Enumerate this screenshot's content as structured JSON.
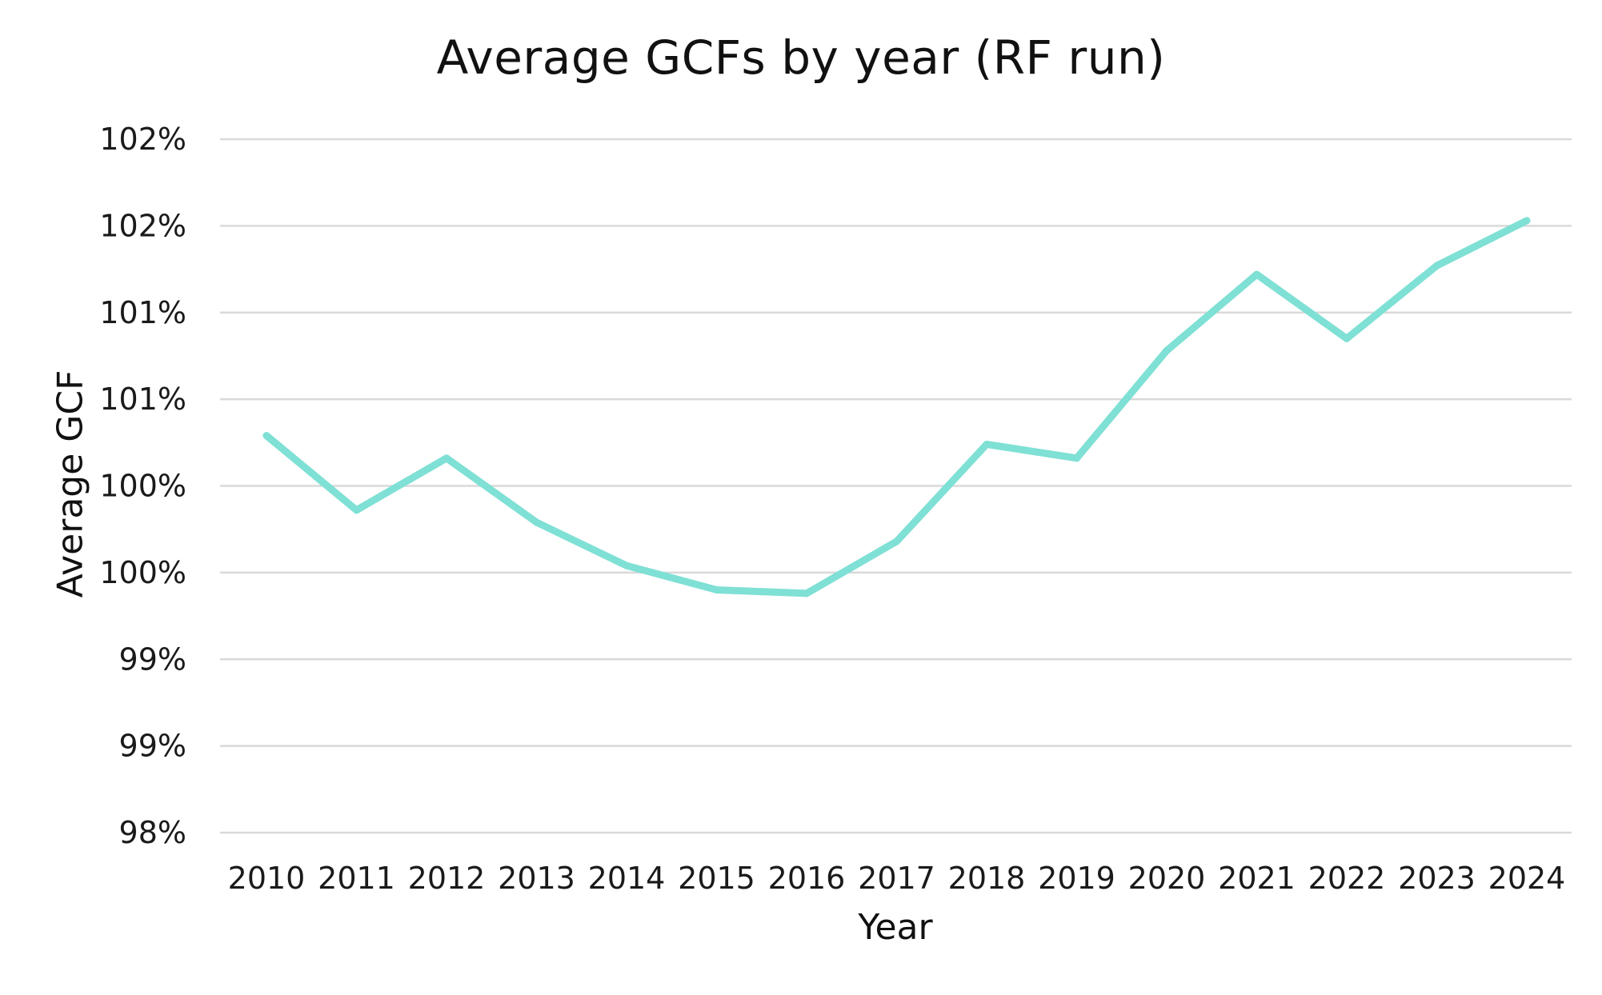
{
  "chart_data": {
    "type": "line",
    "title": "Average GCFs by year (RF run)",
    "xlabel": "Year",
    "ylabel": "Average GCF",
    "categories": [
      "2010",
      "2011",
      "2012",
      "2013",
      "2014",
      "2015",
      "2016",
      "2017",
      "2018",
      "2019",
      "2020",
      "2021",
      "2022",
      "2023",
      "2024"
    ],
    "series": [
      {
        "values": [
          100.54,
          100.11,
          100.41,
          100.04,
          99.79,
          99.65,
          99.63,
          99.93,
          100.49,
          100.41,
          101.03,
          101.47,
          101.1,
          101.52,
          101.78
        ]
      }
    ],
    "ylim": [
      98.25,
      102.25
    ],
    "yticks": [
      98.25,
      98.75,
      99.25,
      99.75,
      100.25,
      100.75,
      101.25,
      101.75,
      102.25
    ],
    "ytick_labels": [
      "98%",
      "99%",
      "99%",
      "100%",
      "100%",
      "101%",
      "101%",
      "102%",
      "102%"
    ],
    "grid": true,
    "legend": "none",
    "colors": {
      "series": "#7fe0d5",
      "grid": "#d9d9d9"
    }
  }
}
